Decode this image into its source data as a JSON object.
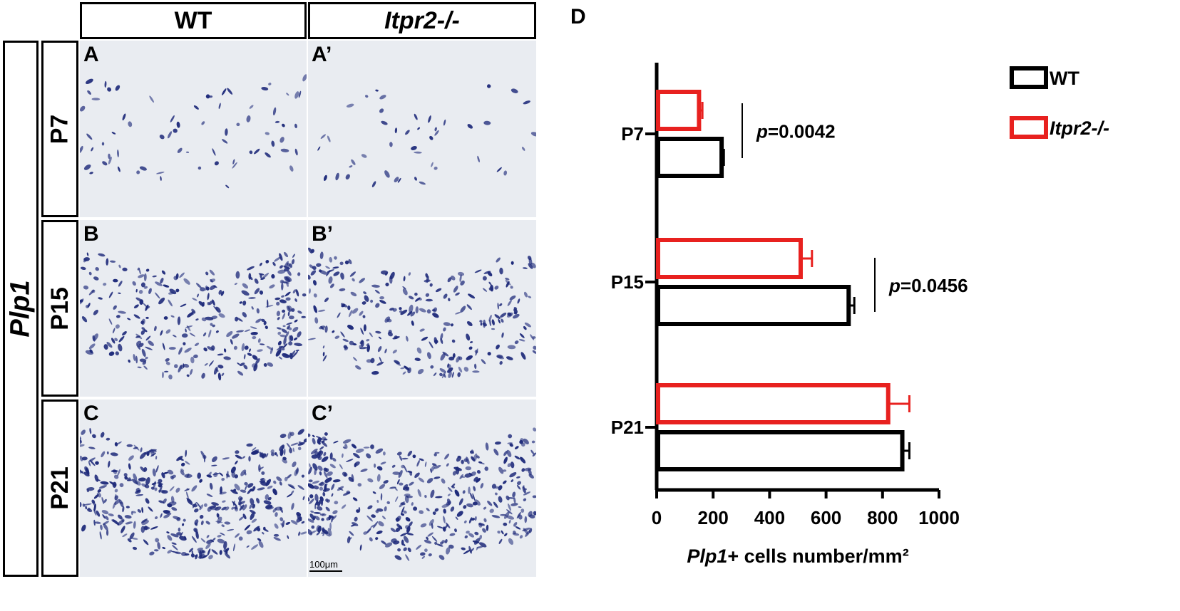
{
  "figure": {
    "col_headers": [
      "WT",
      "Itpr2-/-"
    ],
    "marker_label": "Plp1",
    "row_headers": [
      "P7",
      "P15",
      "P21"
    ],
    "panel_labels": [
      "A",
      "A’",
      "B",
      "B’",
      "C",
      "C’"
    ],
    "scale_bar": "100μm",
    "panel_d_label": "D"
  },
  "colors": {
    "wt": "#000000",
    "ko": "#e8211f",
    "stain": "#1e2a7a"
  },
  "chart_data": {
    "type": "bar",
    "orientation": "horizontal",
    "categories": [
      "P7",
      "P15",
      "P21"
    ],
    "series": [
      {
        "name": "WT",
        "values": [
          230,
          680,
          870
        ],
        "errors": [
          8,
          20,
          25
        ]
      },
      {
        "name": "Itpr2-/-",
        "values": [
          150,
          510,
          820
        ],
        "errors": [
          12,
          40,
          75
        ]
      }
    ],
    "xlabel_italic": "Plp1",
    "xlabel_rest": "+ cells number/mm²",
    "xlim": [
      0,
      1000
    ],
    "xticks": [
      0,
      200,
      400,
      600,
      800,
      1000
    ],
    "annotations": [
      {
        "category": "P7",
        "p_symbol": "p",
        "p_value": "=0.0042"
      },
      {
        "category": "P15",
        "p_symbol": "p",
        "p_value": "=0.0456"
      }
    ],
    "legend_position": "top-right"
  }
}
